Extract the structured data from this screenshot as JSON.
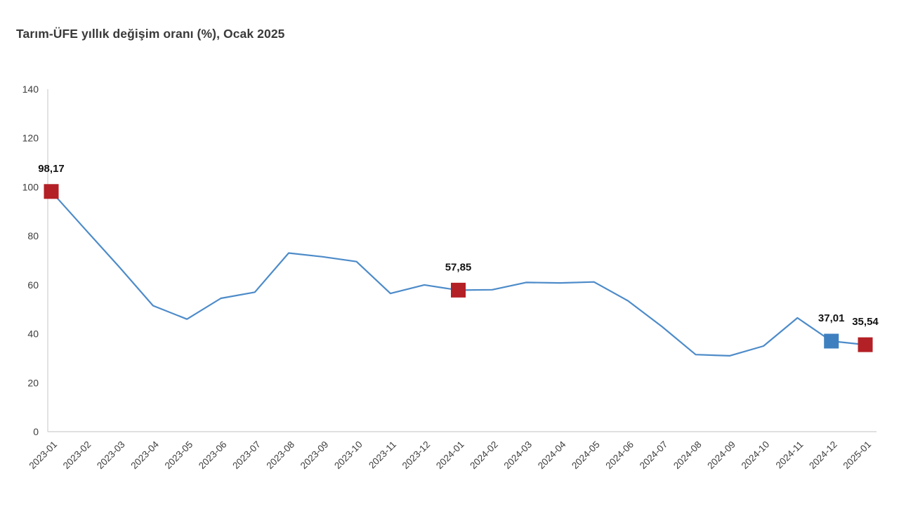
{
  "title": "Tarım-ÜFE yıllık değişim oranı (%), Ocak 2025",
  "colors": {
    "line": "#4d8bc9",
    "marker_red": "#b32025",
    "marker_blue": "#3e7fbf",
    "axis": "#d6d6d6",
    "tick_text": "#3d3d3d",
    "label_text": "#121212",
    "title_text": "#3a3a3a",
    "background": "#ffffff"
  },
  "chart_data": {
    "type": "line",
    "title": "Tarım-ÜFE yıllık değişim oranı (%), Ocak 2025",
    "categories": [
      "2023-01",
      "2023-02",
      "2023-03",
      "2023-04",
      "2023-05",
      "2023-06",
      "2023-07",
      "2023-08",
      "2023-09",
      "2023-10",
      "2023-11",
      "2023-12",
      "2024-01",
      "2024-02",
      "2024-03",
      "2024-04",
      "2024-05",
      "2024-06",
      "2024-07",
      "2024-08",
      "2024-09",
      "2024-10",
      "2024-11",
      "2024-12",
      "2025-01"
    ],
    "series": [
      {
        "name": "Tarım-ÜFE yıllık değişim oranı (%)",
        "values": [
          98.17,
          82.7,
          67.4,
          51.5,
          46,
          54.5,
          57,
          73,
          71.5,
          69.5,
          56.5,
          60,
          57.85,
          58,
          61,
          60.8,
          61.2,
          53.5,
          43,
          31.5,
          31,
          35,
          46.5,
          37.01,
          35.54
        ]
      }
    ],
    "xlabel": "",
    "ylabel": "",
    "ylim": [
      0,
      140
    ],
    "yticks": [
      0,
      20,
      40,
      60,
      80,
      100,
      120,
      140
    ],
    "grid": false,
    "legend": "none",
    "x_tick_rotation": 45,
    "annotations": [
      {
        "category": "2023-01",
        "value": 98.17,
        "label": "98,17",
        "marker": "red-square"
      },
      {
        "category": "2024-01",
        "value": 57.85,
        "label": "57,85",
        "marker": "red-square"
      },
      {
        "category": "2024-12",
        "value": 37.01,
        "label": "37,01",
        "marker": "blue-square"
      },
      {
        "category": "2025-01",
        "value": 35.54,
        "label": "35,54",
        "marker": "red-square"
      }
    ]
  }
}
